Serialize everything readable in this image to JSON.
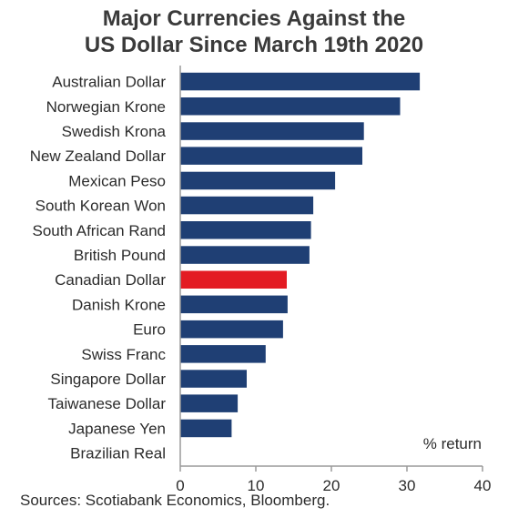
{
  "title_lines": [
    "Major Currencies Against the",
    "US Dollar Since March 19th 2020"
  ],
  "source": "Sources: Scotiabank Economics, Bloomberg.",
  "chart_data": {
    "type": "bar",
    "orientation": "horizontal",
    "title": "Major Currencies Against the US Dollar Since March 19th 2020",
    "unit_label": "% return",
    "categories": [
      "Australian Dollar",
      "Norwegian Krone",
      "Swedish Krona",
      "New Zealand Dollar",
      "Mexican Peso",
      "South Korean Won",
      "South African Rand",
      "British Pound",
      "Canadian Dollar",
      "Danish Krone",
      "Euro",
      "Swiss Franc",
      "Singapore Dollar",
      "Taiwanese Dollar",
      "Japanese Yen",
      "Brazilian Real"
    ],
    "values": [
      31.7,
      29.1,
      24.3,
      24.1,
      20.5,
      17.6,
      17.3,
      17.1,
      14.1,
      14.2,
      13.6,
      11.3,
      8.8,
      7.6,
      6.8,
      0
    ],
    "highlight_category": "Canadian Dollar",
    "colors": {
      "bar": "#1f3f74",
      "highlight": "#e31b23",
      "axis": "#9a9a9a",
      "text": "#2b2b2b"
    },
    "xlim": [
      0,
      40
    ],
    "xticks": [
      0,
      10,
      20,
      30,
      40
    ],
    "grid": false
  }
}
